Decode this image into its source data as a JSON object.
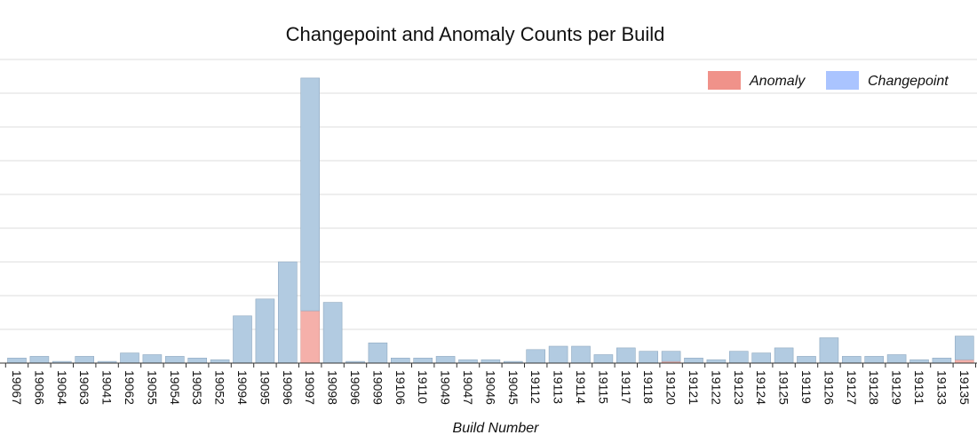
{
  "colors": {
    "anomaly": "#f0928a",
    "changepoint": "#aac4ff",
    "bar_changepoint": "#b2cbe1",
    "bar_anomaly": "#f5b0aa",
    "grid": "#dcdcdc"
  },
  "chart_data": {
    "type": "bar",
    "stacked": true,
    "title": "Changepoint and Anomaly Counts per Build",
    "xlabel": "Build Number",
    "ylabel": "",
    "ylim": [
      0,
      9
    ],
    "grid": true,
    "legend_position": "top-right",
    "legend": [
      {
        "key": "anomaly",
        "label": "Anomaly"
      },
      {
        "key": "changepoint",
        "label": "Changepoint"
      }
    ],
    "categories": [
      "19067",
      "19066",
      "19064",
      "19063",
      "19041",
      "19062",
      "19055",
      "19054",
      "19053",
      "19052",
      "19094",
      "19095",
      "19096",
      "19097",
      "19098",
      "19096",
      "19099",
      "19106",
      "19110",
      "19049",
      "19047",
      "19046",
      "19045",
      "19112",
      "19113",
      "19114",
      "19115",
      "19117",
      "19118",
      "19120",
      "19121",
      "19122",
      "19123",
      "19124",
      "19125",
      "19119",
      "19126",
      "19127",
      "19128",
      "19129",
      "19131",
      "19133",
      "19135"
    ],
    "series": [
      {
        "name": "Anomaly",
        "key": "anomaly",
        "values": [
          0,
          0,
          0,
          0,
          0,
          0,
          0,
          0,
          0,
          0,
          0,
          0,
          0,
          1.55,
          0,
          0,
          0,
          0,
          0,
          0,
          0,
          0,
          0,
          0,
          0,
          0,
          0,
          0,
          0,
          0.05,
          0,
          0,
          0,
          0,
          0,
          0,
          0,
          0,
          0,
          0,
          0,
          0,
          0.1
        ]
      },
      {
        "name": "Changepoint",
        "key": "changepoint",
        "values": [
          0.15,
          0.2,
          0.05,
          0.2,
          0.05,
          0.3,
          0.25,
          0.2,
          0.15,
          0.1,
          1.4,
          1.9,
          3.0,
          6.9,
          1.8,
          0.05,
          0.6,
          0.15,
          0.15,
          0.2,
          0.1,
          0.1,
          0.05,
          0.4,
          0.5,
          0.5,
          0.25,
          0.45,
          0.35,
          0.3,
          0.15,
          0.1,
          0.35,
          0.3,
          0.45,
          0.2,
          0.75,
          0.2,
          0.2,
          0.25,
          0.1,
          0.15,
          0.7
        ]
      }
    ]
  }
}
